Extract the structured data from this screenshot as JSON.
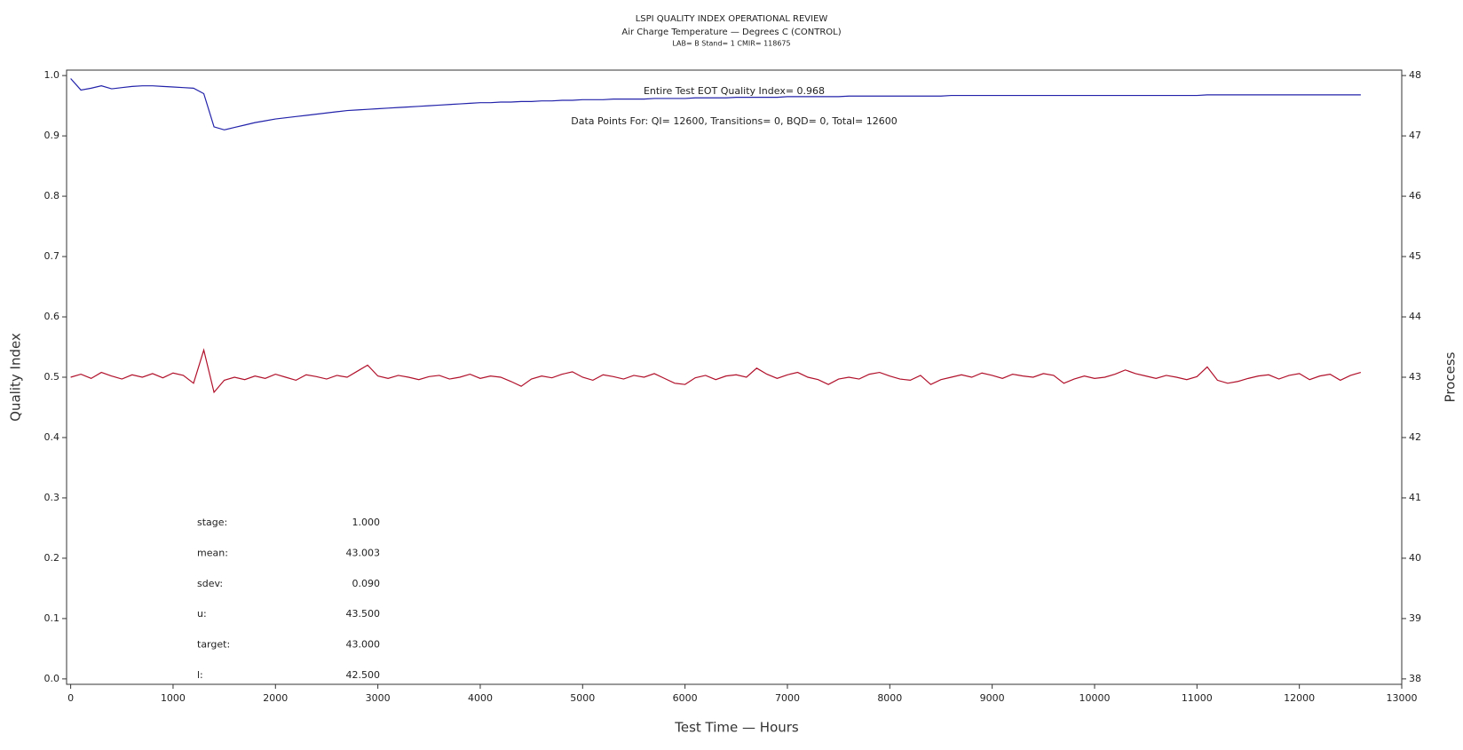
{
  "chart_data": {
    "type": "line",
    "title": "LSPI QUALITY INDEX OPERATIONAL REVIEW",
    "subtitle": "Air Charge Temperature — Degrees C (CONTROL)",
    "caption": "LAB= B Stand= 1 CMIR= 118675",
    "xlabel": "Test Time — Hours",
    "ylabel": "Quality Index",
    "y2label": "Process",
    "annotations": [
      "Entire Test EOT Quality Index=   0.968",
      "Data Points For: QI= 12600, Transitions=     0, BQD=     0, Total= 12600"
    ],
    "stats": [
      {
        "label": "stage:",
        "value": "1.000"
      },
      {
        "label": "mean:",
        "value": "43.003"
      },
      {
        "label": "sdev:",
        "value": "0.090"
      },
      {
        "label": "u:",
        "value": "43.500"
      },
      {
        "label": "target:",
        "value": "43.000"
      },
      {
        "label": "l:",
        "value": "42.500"
      }
    ],
    "xlim": [
      -40,
      13000
    ],
    "xticks": [
      0,
      1000,
      2000,
      3000,
      4000,
      5000,
      6000,
      7000,
      8000,
      9000,
      10000,
      11000,
      12000,
      13000
    ],
    "ylim": [
      -0.009,
      1.009
    ],
    "yticks": [
      {
        "value": 0,
        "label": "0.0"
      },
      0.1,
      0.2,
      0.3,
      0.4,
      0.5,
      0.6,
      0.7,
      0.8,
      0.9,
      {
        "value": 1,
        "label": "1.0"
      }
    ],
    "y2lim": [
      37.91,
      48.09
    ],
    "y2ticks": [
      38,
      39,
      40,
      41,
      42,
      43,
      44,
      45,
      46,
      47,
      48
    ],
    "x": [
      0,
      100,
      200,
      300,
      400,
      500,
      600,
      700,
      800,
      900,
      1000,
      1100,
      1200,
      1300,
      1400,
      1500,
      1600,
      1700,
      1800,
      1900,
      2000,
      2100,
      2200,
      2300,
      2400,
      2500,
      2600,
      2700,
      2800,
      2900,
      3000,
      3100,
      3200,
      3300,
      3400,
      3500,
      3600,
      3700,
      3800,
      3900,
      4000,
      4100,
      4200,
      4300,
      4400,
      4500,
      4600,
      4700,
      4800,
      4900,
      5000,
      5100,
      5200,
      5300,
      5400,
      5500,
      5600,
      5700,
      5800,
      5900,
      6000,
      6100,
      6200,
      6300,
      6400,
      6500,
      6600,
      6700,
      6800,
      6900,
      7000,
      7100,
      7200,
      7300,
      7400,
      7500,
      7600,
      7700,
      7800,
      7900,
      8000,
      8100,
      8200,
      8300,
      8400,
      8500,
      8600,
      8700,
      8800,
      8900,
      9000,
      9100,
      9200,
      9300,
      9400,
      9500,
      9600,
      9700,
      9800,
      9900,
      10000,
      10100,
      10200,
      10300,
      10400,
      10500,
      10600,
      10700,
      10800,
      10900,
      11000,
      11100,
      11200,
      11300,
      11400,
      11500,
      11600,
      11700,
      11800,
      11900,
      12000,
      12100,
      12200,
      12300,
      12400,
      12500,
      12600
    ],
    "series": [
      {
        "color": "#2222aa",
        "values": [
          0.995,
          0.976,
          0.979,
          0.983,
          0.978,
          0.98,
          0.982,
          0.983,
          0.983,
          0.982,
          0.981,
          0.98,
          0.979,
          0.97,
          0.915,
          0.91,
          0.914,
          0.918,
          0.922,
          0.925,
          0.928,
          0.93,
          0.932,
          0.934,
          0.936,
          0.938,
          0.94,
          0.942,
          0.943,
          0.944,
          0.945,
          0.946,
          0.947,
          0.948,
          0.949,
          0.95,
          0.951,
          0.952,
          0.953,
          0.954,
          0.955,
          0.955,
          0.956,
          0.956,
          0.957,
          0.957,
          0.958,
          0.958,
          0.959,
          0.959,
          0.96,
          0.96,
          0.96,
          0.961,
          0.961,
          0.961,
          0.961,
          0.962,
          0.962,
          0.962,
          0.962,
          0.963,
          0.963,
          0.963,
          0.963,
          0.964,
          0.964,
          0.964,
          0.964,
          0.964,
          0.965,
          0.965,
          0.965,
          0.965,
          0.965,
          0.965,
          0.966,
          0.966,
          0.966,
          0.966,
          0.966,
          0.966,
          0.966,
          0.966,
          0.966,
          0.966,
          0.967,
          0.967,
          0.967,
          0.967,
          0.967,
          0.967,
          0.967,
          0.967,
          0.967,
          0.967,
          0.967,
          0.967,
          0.967,
          0.967,
          0.967,
          0.967,
          0.967,
          0.967,
          0.967,
          0.967,
          0.967,
          0.967,
          0.967,
          0.967,
          0.967,
          0.968,
          0.968,
          0.968,
          0.968,
          0.968,
          0.968,
          0.968,
          0.968,
          0.968,
          0.968,
          0.968,
          0.968,
          0.968,
          0.968,
          0.968,
          0.968
        ]
      },
      {
        "color": "#b0102a",
        "axis": "y2",
        "values": [
          43.0,
          43.05,
          42.98,
          43.08,
          43.02,
          42.97,
          43.04,
          43.0,
          43.06,
          42.99,
          43.07,
          43.03,
          42.9,
          43.45,
          42.75,
          42.95,
          43.0,
          42.96,
          43.02,
          42.98,
          43.05,
          43.0,
          42.95,
          43.04,
          43.01,
          42.97,
          43.03,
          43.0,
          43.1,
          43.2,
          43.02,
          42.98,
          43.03,
          43.0,
          42.96,
          43.01,
          43.03,
          42.97,
          43.0,
          43.05,
          42.98,
          43.02,
          43.0,
          42.93,
          42.85,
          42.97,
          43.02,
          42.99,
          43.05,
          43.09,
          43.0,
          42.95,
          43.04,
          43.01,
          42.97,
          43.03,
          43.0,
          43.06,
          42.98,
          42.9,
          42.88,
          42.99,
          43.03,
          42.96,
          43.02,
          43.04,
          43.0,
          43.15,
          43.05,
          42.98,
          43.04,
          43.08,
          43.0,
          42.96,
          42.88,
          42.97,
          43.0,
          42.97,
          43.05,
          43.08,
          43.02,
          42.97,
          42.95,
          43.03,
          42.88,
          42.96,
          43.0,
          43.04,
          43.0,
          43.07,
          43.03,
          42.98,
          43.05,
          43.02,
          43.0,
          43.06,
          43.03,
          42.9,
          42.97,
          43.02,
          42.98,
          43.0,
          43.05,
          43.12,
          43.06,
          43.02,
          42.98,
          43.03,
          43.0,
          42.96,
          43.01,
          43.17,
          42.95,
          42.9,
          42.93,
          42.98,
          43.02,
          43.04,
          42.97,
          43.03,
          43.06,
          42.96,
          43.02,
          43.05,
          42.95,
          43.03,
          43.08
        ]
      }
    ]
  }
}
